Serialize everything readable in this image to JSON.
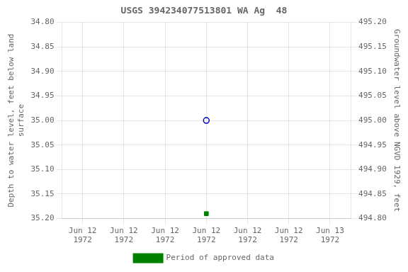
{
  "chart_data": {
    "type": "scatter",
    "title": "USGS 394234077513801 WA Ag  48",
    "y_label": "Depth to water level, feet below land\nsurface",
    "y2_label": "Groundwater level above NGVD 1929, feet",
    "categories": [
      "Jun 12\n1972",
      "Jun 12\n1972",
      "Jun 12\n1972",
      "Jun 12\n1972",
      "Jun 12\n1972",
      "Jun 12\n1972",
      "Jun 13\n1972"
    ],
    "series": [
      {
        "color": "#0000cc",
        "marker": "open circle",
        "values": [
          null,
          null,
          null,
          35.0,
          null,
          null,
          null
        ]
      },
      {
        "name": "Period of approved data",
        "color": "#008000",
        "marker": "square",
        "values": [
          null,
          null,
          null,
          35.19,
          null,
          null,
          null
        ]
      }
    ],
    "ylim": [
      35.2,
      34.8
    ],
    "yticks": [
      {
        "value": 34.8,
        "label": "34.80"
      },
      {
        "value": 34.85,
        "label": "34.85"
      },
      {
        "value": 34.9,
        "label": "34.90"
      },
      {
        "value": 34.95,
        "label": "34.95"
      },
      {
        "value": 35.0,
        "label": "35.00"
      },
      {
        "value": 35.05,
        "label": "35.05"
      },
      {
        "value": 35.1,
        "label": "35.10"
      },
      {
        "value": 35.15,
        "label": "35.15"
      },
      {
        "value": 35.2,
        "label": "35.20"
      }
    ],
    "y2lim": [
      494.8,
      495.2
    ],
    "y2ticks": [
      {
        "value": 495.2,
        "label": "495.20"
      },
      {
        "value": 495.15,
        "label": "495.15"
      },
      {
        "value": 495.1,
        "label": "495.10"
      },
      {
        "value": 495.05,
        "label": "495.05"
      },
      {
        "value": 495.0,
        "label": "495.00"
      },
      {
        "value": 494.95,
        "label": "494.95"
      },
      {
        "value": 494.9,
        "label": "494.90"
      },
      {
        "value": 494.85,
        "label": "494.85"
      },
      {
        "value": 494.8,
        "label": "494.80"
      }
    ],
    "grid": true,
    "legend": "bottom"
  }
}
